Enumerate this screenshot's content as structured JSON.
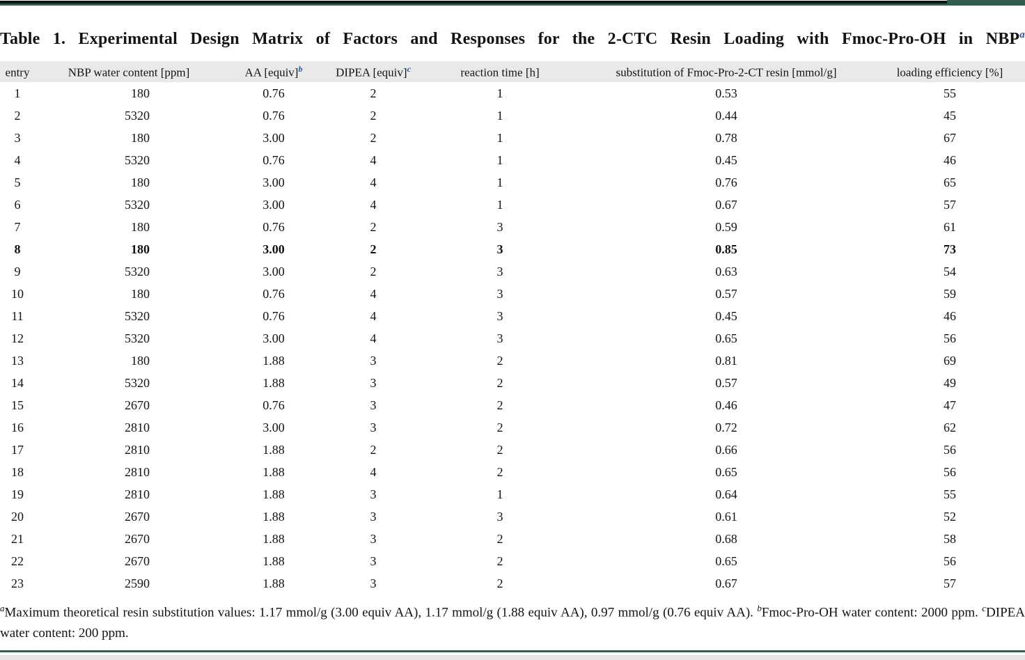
{
  "title": {
    "text": "Table 1. Experimental Design Matrix of Factors and Responses for the 2-CTC Resin Loading with Fmoc-Pro-OH in NBP",
    "superscript": "a"
  },
  "table": {
    "columns": [
      {
        "label": "entry",
        "superscript": ""
      },
      {
        "label": "NBP water content [ppm]",
        "superscript": ""
      },
      {
        "label": "AA [equiv]",
        "superscript": "b"
      },
      {
        "label": "DIPEA [equiv]",
        "superscript": "c"
      },
      {
        "label": "reaction time [h]",
        "superscript": ""
      },
      {
        "label": "substitution of Fmoc-Pro-2-CT resin [mmol/g]",
        "superscript": ""
      },
      {
        "label": "loading efficiency [%]",
        "superscript": ""
      }
    ],
    "rows": [
      {
        "entry": "1",
        "nbp": "180",
        "aa": "0.76",
        "dipea": "2",
        "time": "1",
        "sub": "0.53",
        "eff": "55",
        "bold": false
      },
      {
        "entry": "2",
        "nbp": "5320",
        "aa": "0.76",
        "dipea": "2",
        "time": "1",
        "sub": "0.44",
        "eff": "45",
        "bold": false
      },
      {
        "entry": "3",
        "nbp": "180",
        "aa": "3.00",
        "dipea": "2",
        "time": "1",
        "sub": "0.78",
        "eff": "67",
        "bold": false
      },
      {
        "entry": "4",
        "nbp": "5320",
        "aa": "0.76",
        "dipea": "4",
        "time": "1",
        "sub": "0.45",
        "eff": "46",
        "bold": false
      },
      {
        "entry": "5",
        "nbp": "180",
        "aa": "3.00",
        "dipea": "4",
        "time": "1",
        "sub": "0.76",
        "eff": "65",
        "bold": false
      },
      {
        "entry": "6",
        "nbp": "5320",
        "aa": "3.00",
        "dipea": "4",
        "time": "1",
        "sub": "0.67",
        "eff": "57",
        "bold": false
      },
      {
        "entry": "7",
        "nbp": "180",
        "aa": "0.76",
        "dipea": "2",
        "time": "3",
        "sub": "0.59",
        "eff": "61",
        "bold": false
      },
      {
        "entry": "8",
        "nbp": "180",
        "aa": "3.00",
        "dipea": "2",
        "time": "3",
        "sub": "0.85",
        "eff": "73",
        "bold": true
      },
      {
        "entry": "9",
        "nbp": "5320",
        "aa": "3.00",
        "dipea": "2",
        "time": "3",
        "sub": "0.63",
        "eff": "54",
        "bold": false
      },
      {
        "entry": "10",
        "nbp": "180",
        "aa": "0.76",
        "dipea": "4",
        "time": "3",
        "sub": "0.57",
        "eff": "59",
        "bold": false
      },
      {
        "entry": "11",
        "nbp": "5320",
        "aa": "0.76",
        "dipea": "4",
        "time": "3",
        "sub": "0.45",
        "eff": "46",
        "bold": false
      },
      {
        "entry": "12",
        "nbp": "5320",
        "aa": "3.00",
        "dipea": "4",
        "time": "3",
        "sub": "0.65",
        "eff": "56",
        "bold": false
      },
      {
        "entry": "13",
        "nbp": "180",
        "aa": "1.88",
        "dipea": "3",
        "time": "2",
        "sub": "0.81",
        "eff": "69",
        "bold": false
      },
      {
        "entry": "14",
        "nbp": "5320",
        "aa": "1.88",
        "dipea": "3",
        "time": "2",
        "sub": "0.57",
        "eff": "49",
        "bold": false
      },
      {
        "entry": "15",
        "nbp": "2670",
        "aa": "0.76",
        "dipea": "3",
        "time": "2",
        "sub": "0.46",
        "eff": "47",
        "bold": false
      },
      {
        "entry": "16",
        "nbp": "2810",
        "aa": "3.00",
        "dipea": "3",
        "time": "2",
        "sub": "0.72",
        "eff": "62",
        "bold": false
      },
      {
        "entry": "17",
        "nbp": "2810",
        "aa": "1.88",
        "dipea": "2",
        "time": "2",
        "sub": "0.66",
        "eff": "56",
        "bold": false
      },
      {
        "entry": "18",
        "nbp": "2810",
        "aa": "1.88",
        "dipea": "4",
        "time": "2",
        "sub": "0.65",
        "eff": "56",
        "bold": false
      },
      {
        "entry": "19",
        "nbp": "2810",
        "aa": "1.88",
        "dipea": "3",
        "time": "1",
        "sub": "0.64",
        "eff": "55",
        "bold": false
      },
      {
        "entry": "20",
        "nbp": "2670",
        "aa": "1.88",
        "dipea": "3",
        "time": "3",
        "sub": "0.61",
        "eff": "52",
        "bold": false
      },
      {
        "entry": "21",
        "nbp": "2670",
        "aa": "1.88",
        "dipea": "3",
        "time": "2",
        "sub": "0.68",
        "eff": "58",
        "bold": false
      },
      {
        "entry": "22",
        "nbp": "2670",
        "aa": "1.88",
        "dipea": "3",
        "time": "2",
        "sub": "0.65",
        "eff": "56",
        "bold": false
      },
      {
        "entry": "23",
        "nbp": "2590",
        "aa": "1.88",
        "dipea": "3",
        "time": "2",
        "sub": "0.67",
        "eff": "57",
        "bold": false
      }
    ]
  },
  "footnotes": [
    {
      "marker": "a",
      "text": "Maximum theoretical resin substitution values: 1.17 mmol/g (3.00 equiv AA), 1.17 mmol/g (1.88 equiv AA), 0.97 mmol/g (0.76 equiv AA). "
    },
    {
      "marker": "b",
      "text": "Fmoc-Pro-OH water content: 2000 ppm. "
    },
    {
      "marker": "c",
      "text": "DIPEA water content: 200 ppm."
    }
  ],
  "colors": {
    "accent_blue": "#2356a7",
    "rule_green": "#2f5f4c",
    "rule_black": "#121212",
    "header_gray": "#e9e9e9",
    "bottom_strip_gray": "#e5e5e5"
  }
}
